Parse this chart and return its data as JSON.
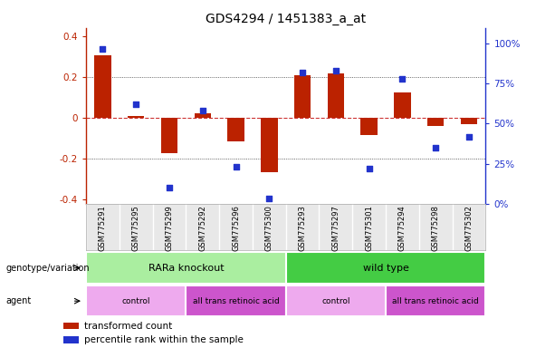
{
  "title": "GDS4294 / 1451383_a_at",
  "samples": [
    "GSM775291",
    "GSM775295",
    "GSM775299",
    "GSM775292",
    "GSM775296",
    "GSM775300",
    "GSM775293",
    "GSM775297",
    "GSM775301",
    "GSM775294",
    "GSM775298",
    "GSM775302"
  ],
  "bar_values": [
    0.305,
    0.01,
    -0.175,
    0.02,
    -0.115,
    -0.265,
    0.21,
    0.215,
    -0.085,
    0.125,
    -0.04,
    -0.03
  ],
  "scatter_values": [
    97,
    62,
    10,
    58,
    23,
    3,
    82,
    83,
    22,
    78,
    35,
    42
  ],
  "ylim_left": [
    -0.42,
    0.44
  ],
  "ylim_right": [
    0,
    110
  ],
  "yticks_left": [
    -0.4,
    -0.2,
    0.0,
    0.2,
    0.4
  ],
  "ytick_labels_left": [
    "-0.4",
    "-0.2",
    "0",
    "0.2",
    "0.4"
  ],
  "yticks_right": [
    0,
    25,
    50,
    75,
    100
  ],
  "ytick_labels_right": [
    "0%",
    "25%",
    "50%",
    "75%",
    "100%"
  ],
  "bar_color": "#bb2200",
  "scatter_color": "#2233cc",
  "zero_line_color": "#cc3333",
  "grid_color": "#333333",
  "genotype_groups": [
    {
      "label": "RARa knockout",
      "start": 0,
      "end": 6,
      "color": "#aaeea0"
    },
    {
      "label": "wild type",
      "start": 6,
      "end": 12,
      "color": "#44cc44"
    }
  ],
  "agent_groups": [
    {
      "label": "control",
      "start": 0,
      "end": 3,
      "color": "#eeaaee"
    },
    {
      "label": "all trans retinoic acid",
      "start": 3,
      "end": 6,
      "color": "#cc55cc"
    },
    {
      "label": "control",
      "start": 6,
      "end": 9,
      "color": "#eeaaee"
    },
    {
      "label": "all trans retinoic acid",
      "start": 9,
      "end": 12,
      "color": "#cc55cc"
    }
  ],
  "legend_items": [
    {
      "label": "transformed count",
      "color": "#bb2200"
    },
    {
      "label": "percentile rank within the sample",
      "color": "#2233cc"
    }
  ],
  "genotype_label": "genotype/variation",
  "agent_label": "agent",
  "tick_label_color_left": "#bb2200",
  "tick_label_color_right": "#2233cc",
  "background_color": "#ffffff"
}
